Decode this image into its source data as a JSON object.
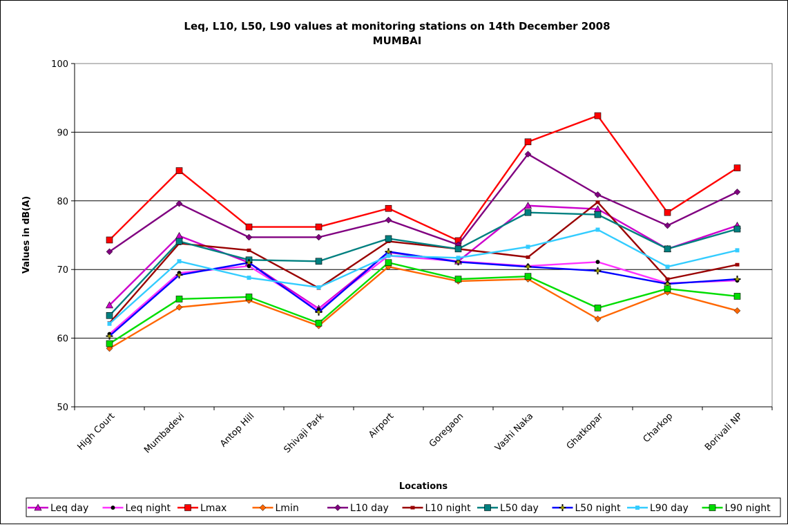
{
  "chart_data": {
    "type": "line",
    "title": "Leq, L10, L50, L90 values at monitoring stations on 14th December 2008",
    "subtitle": "MUMBAI",
    "xlabel": "Locations",
    "ylabel": "Values in dB(A)",
    "ylim": [
      50,
      100
    ],
    "yticks": [
      50,
      60,
      70,
      80,
      90,
      100
    ],
    "grid": true,
    "legend_position": "bottom",
    "categories": [
      "High Court",
      "Mumbadevi",
      "Antop Hill",
      "Shivaji Park",
      "Airport",
      "Goregaon",
      "Vashi Naka",
      "Ghatkopar",
      "Charkop",
      "Borivali NP"
    ],
    "series": [
      {
        "name": "Leq day",
        "color": "#cc00cc",
        "marker": "triangle",
        "values": [
          64.8,
          74.9,
          71.0,
          64.3,
          72.5,
          71.2,
          79.3,
          78.8,
          73.0,
          76.4
        ]
      },
      {
        "name": "Leq night",
        "color": "#ff33ff",
        "marker": "circle",
        "values": [
          60.6,
          69.5,
          70.5,
          64.2,
          72.0,
          71.2,
          70.5,
          71.1,
          68.0,
          68.4
        ]
      },
      {
        "name": "Lmax",
        "color": "#ff0000",
        "marker": "square",
        "values": [
          74.3,
          84.4,
          76.2,
          76.2,
          78.9,
          74.2,
          88.6,
          92.4,
          78.3,
          84.8
        ]
      },
      {
        "name": "Lmin",
        "color": "#ff6600",
        "marker": "diamond",
        "values": [
          58.5,
          64.5,
          65.5,
          61.8,
          70.4,
          68.3,
          68.6,
          62.8,
          66.7,
          64.0
        ]
      },
      {
        "name": "L10 day",
        "color": "#800080",
        "marker": "diamond",
        "values": [
          72.6,
          79.6,
          74.7,
          74.7,
          77.2,
          73.6,
          86.8,
          80.9,
          76.4,
          81.3
        ]
      },
      {
        "name": "L10 night",
        "color": "#990000",
        "marker": "dash",
        "values": [
          62.2,
          73.8,
          72.8,
          67.3,
          74.1,
          73.0,
          71.8,
          79.8,
          68.6,
          70.7
        ]
      },
      {
        "name": "L50 day",
        "color": "#008080",
        "marker": "square",
        "values": [
          63.3,
          74.1,
          71.4,
          71.2,
          74.5,
          73.0,
          78.3,
          78.0,
          73.0,
          75.9
        ]
      },
      {
        "name": "L50 night",
        "color": "#0000ff",
        "marker": "plus",
        "values": [
          60.3,
          69.2,
          71.0,
          63.8,
          72.6,
          71.1,
          70.4,
          69.8,
          67.9,
          68.6
        ]
      },
      {
        "name": "L90 day",
        "color": "#33ccff",
        "marker": "square-small",
        "values": [
          62.1,
          71.2,
          68.8,
          67.4,
          72.0,
          71.7,
          73.3,
          75.8,
          70.4,
          72.8
        ]
      },
      {
        "name": "L90 night",
        "color": "#00dd00",
        "marker": "square",
        "values": [
          59.2,
          65.7,
          66.0,
          62.2,
          71.0,
          68.6,
          69.0,
          64.4,
          67.2,
          66.1
        ]
      }
    ]
  }
}
